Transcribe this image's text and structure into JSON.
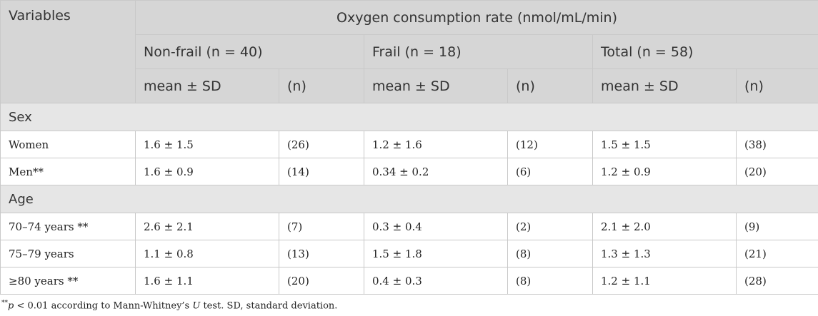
{
  "header": {
    "variables": "Variables",
    "main_title": "Oxygen consumption rate (nmol/mL/min)",
    "groups": [
      "Non-frail (n = 40)",
      "Frail (n = 18)",
      "Total (n = 58)"
    ],
    "sub": [
      "mean ± SD",
      "(n)",
      "mean ± SD",
      "(n)",
      "mean ± SD",
      "(n)"
    ]
  },
  "sections": [
    {
      "label": "Sex",
      "rows": [
        {
          "label": "Women",
          "cells": [
            "1.6 ± 1.5",
            "(26)",
            "1.2 ± 1.6",
            "(12)",
            "1.5 ± 1.5",
            "(38)"
          ]
        },
        {
          "label": "Men**",
          "cells": [
            "1.6 ± 0.9",
            "(14)",
            "0.34 ± 0.2",
            "(6)",
            "1.2 ± 0.9",
            "(20)"
          ]
        }
      ]
    },
    {
      "label": "Age",
      "rows": [
        {
          "label": "70–74 years **",
          "cells": [
            "2.6 ± 2.1",
            "(7)",
            "0.3 ± 0.4",
            "(2)",
            "2.1 ± 2.0",
            "(9)"
          ]
        },
        {
          "label": "75–79 years",
          "cells": [
            "1.1 ± 0.8",
            "(13)",
            "1.5 ± 1.8",
            "(8)",
            "1.3 ± 1.3",
            "(21)"
          ]
        },
        {
          "label": "≥80 years **",
          "cells": [
            "1.6 ± 1.1",
            "(20)",
            "0.4 ± 0.3",
            "(8)",
            "1.2 ± 1.1",
            "(28)"
          ]
        }
      ]
    }
  ],
  "footnote": {
    "marker": "**",
    "p": "p",
    "text1": " < 0.01 according to Mann-Whitney’s ",
    "u": "U",
    "text2": " test. SD, standard deviation."
  }
}
